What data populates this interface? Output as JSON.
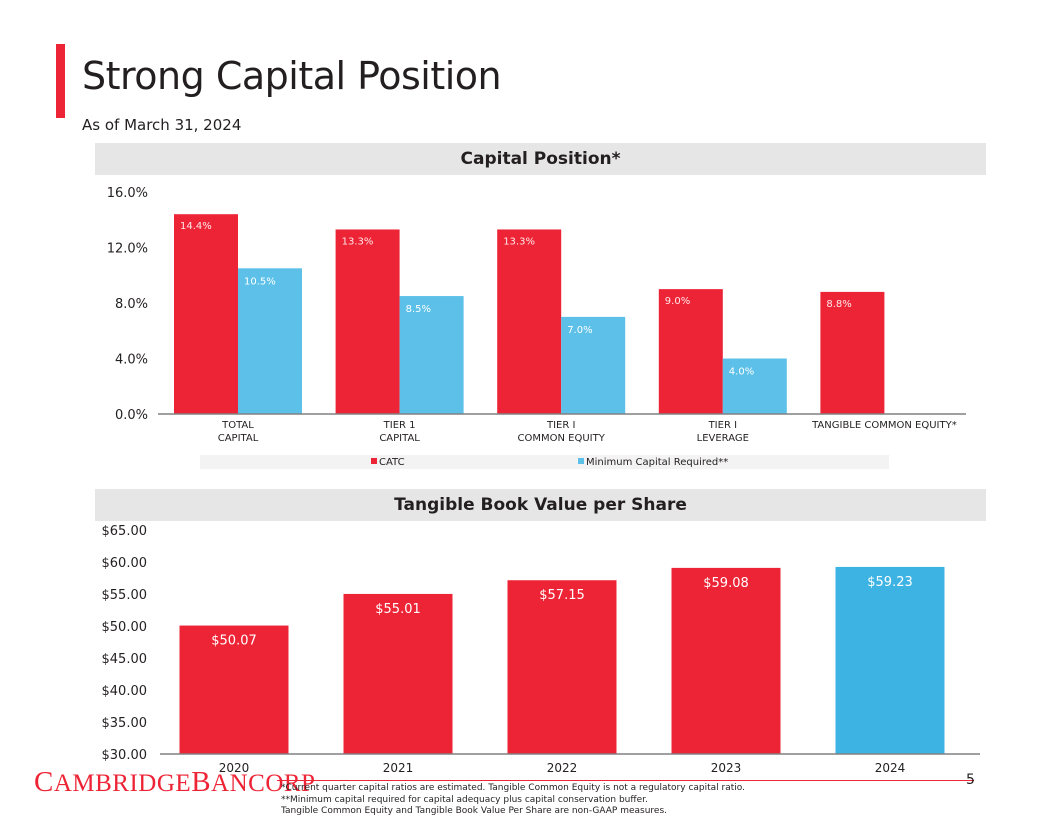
{
  "header": {
    "title": "Strong Capital Position",
    "subtitle": "As of March 31, 2024"
  },
  "colors": {
    "red": "#ed2436",
    "blue": "#5cc0e8",
    "blue_highlight": "#3db3e3",
    "header_bg": "#e6e6e6"
  },
  "chart_data": [
    {
      "type": "bar",
      "title": "Capital Position*",
      "categories": [
        [
          "TOTAL",
          "CAPITAL"
        ],
        [
          "TIER 1",
          "CAPITAL"
        ],
        [
          "TIER I",
          "COMMON EQUITY"
        ],
        [
          "TIER I",
          "LEVERAGE"
        ],
        [
          "TANGIBLE COMMON EQUITY*"
        ]
      ],
      "series": [
        {
          "name": "CATC",
          "values": [
            14.4,
            13.3,
            13.3,
            9.0,
            8.8
          ],
          "labels": [
            "14.4%",
            "13.3%",
            "13.3%",
            "9.0%",
            "8.8%"
          ]
        },
        {
          "name": "Minimum Capital Required**",
          "values": [
            10.5,
            8.5,
            7.0,
            4.0,
            null
          ],
          "labels": [
            "10.5%",
            "8.5%",
            "7.0%",
            "4.0%",
            ""
          ]
        }
      ],
      "ylim": [
        0,
        16
      ],
      "yticks": [
        0,
        4,
        8,
        12,
        16
      ],
      "ytick_labels": [
        "0.0%",
        "4.0%",
        "8.0%",
        "12.0%",
        "16.0%"
      ],
      "legend": "bottom"
    },
    {
      "type": "bar",
      "title": "Tangible Book Value per Share",
      "categories": [
        "2020",
        "2021",
        "2022",
        "2023",
        "2024"
      ],
      "values": [
        50.07,
        55.01,
        57.15,
        59.08,
        59.23
      ],
      "labels": [
        "$50.07",
        "$55.01",
        "$57.15",
        "$59.08",
        "$59.23"
      ],
      "highlight_index": 4,
      "ylim": [
        30,
        65
      ],
      "yticks": [
        30,
        35,
        40,
        45,
        50,
        55,
        60,
        65
      ],
      "ytick_labels": [
        "$30.00",
        "$35.00",
        "$40.00",
        "$45.00",
        "$50.00",
        "$55.00",
        "$60.00",
        "$65.00"
      ]
    }
  ],
  "footer": {
    "logo_parts": [
      "C",
      "AMBRIDGE",
      "B",
      "ANCORP"
    ],
    "page_number": "5",
    "footnotes": [
      "*Current quarter capital ratios are estimated. Tangible Common Equity is not a regulatory capital ratio.",
      "**Minimum capital required for capital adequacy plus capital conservation buffer.",
      "Tangible Common Equity and Tangible Book Value Per Share are non-GAAP measures."
    ]
  }
}
